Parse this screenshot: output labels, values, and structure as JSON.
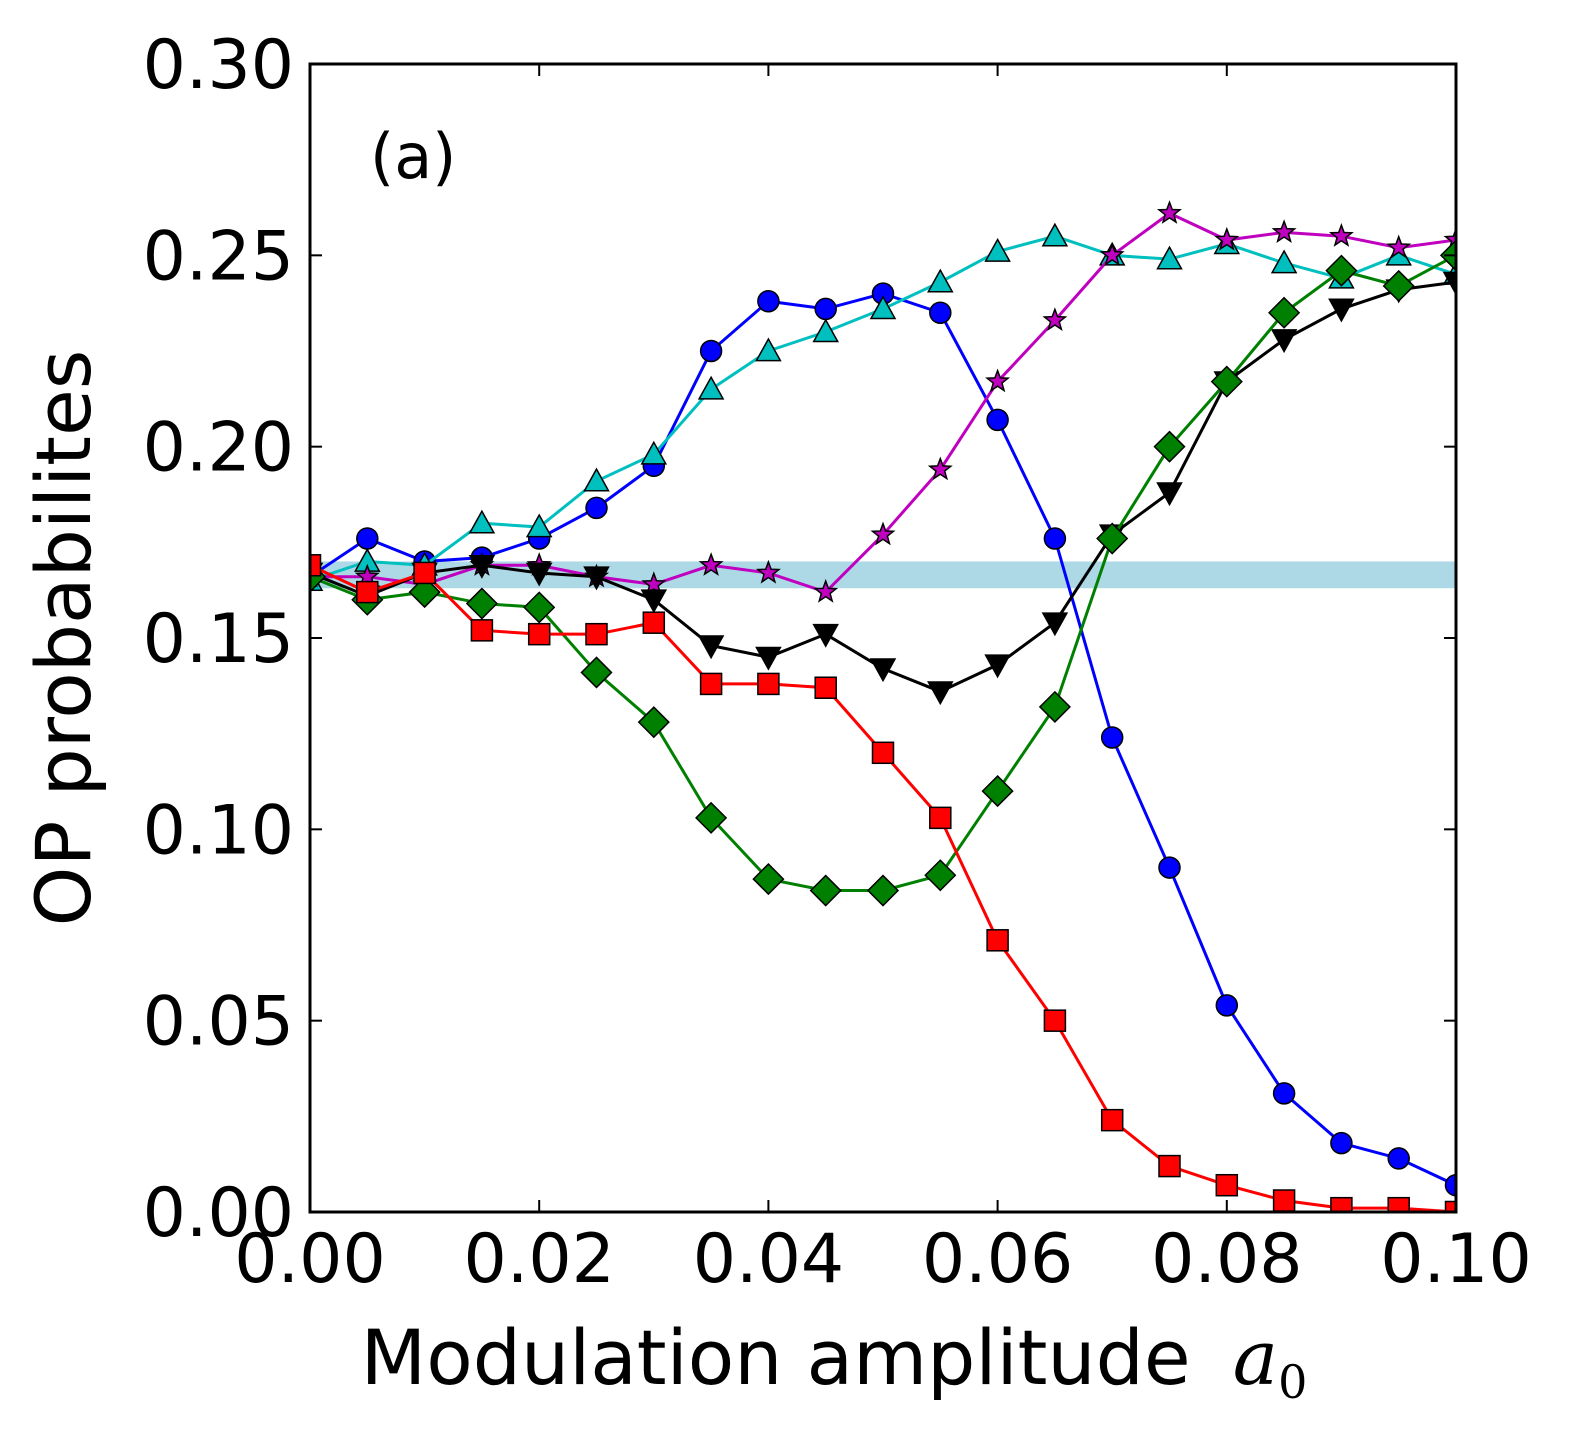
{
  "chart_data": {
    "type": "line",
    "title": "",
    "panel_label": "(a)",
    "xlabel": "Modulation amplitude",
    "xlabel_math": "a",
    "xlabel_sub": "0",
    "ylabel": "OP probabilites",
    "xlim": [
      0.0,
      0.1
    ],
    "ylim": [
      0.0,
      0.3
    ],
    "xticks": [
      0.0,
      0.02,
      0.04,
      0.06,
      0.08,
      0.1
    ],
    "xtick_labels": [
      "0.00",
      "0.02",
      "0.04",
      "0.06",
      "0.08",
      "0.10"
    ],
    "yticks": [
      0.0,
      0.05,
      0.1,
      0.15,
      0.2,
      0.25,
      0.3
    ],
    "ytick_labels": [
      "0.00",
      "0.05",
      "0.10",
      "0.15",
      "0.20",
      "0.25",
      "0.30"
    ],
    "band": {
      "y0": 0.163,
      "y1": 0.17,
      "color": "#add8e6"
    },
    "x": [
      0.0,
      0.005,
      0.01,
      0.015,
      0.02,
      0.025,
      0.03,
      0.035,
      0.04,
      0.045,
      0.05,
      0.055,
      0.06,
      0.065,
      0.07,
      0.075,
      0.08,
      0.085,
      0.09,
      0.095,
      0.1
    ],
    "series": [
      {
        "name": "blue circles",
        "color": "#0000ff",
        "marker": "circle",
        "values": [
          0.166,
          0.176,
          0.17,
          0.171,
          0.176,
          0.184,
          0.195,
          0.225,
          0.238,
          0.236,
          0.24,
          0.235,
          0.207,
          0.176,
          0.124,
          0.09,
          0.054,
          0.031,
          0.018,
          0.014,
          0.007
        ]
      },
      {
        "name": "cyan triangles up",
        "color": "#00bfbf",
        "marker": "triangle-up",
        "values": [
          0.165,
          0.17,
          0.169,
          0.18,
          0.179,
          0.191,
          0.198,
          0.215,
          0.225,
          0.23,
          0.236,
          0.243,
          0.251,
          0.255,
          0.25,
          0.249,
          0.253,
          0.248,
          0.244,
          0.25,
          0.245
        ]
      },
      {
        "name": "magenta stars",
        "color": "#bf00bf",
        "marker": "star",
        "values": [
          0.166,
          0.166,
          0.164,
          0.169,
          0.169,
          0.166,
          0.164,
          0.169,
          0.167,
          0.162,
          0.177,
          0.194,
          0.217,
          0.233,
          0.25,
          0.261,
          0.254,
          0.256,
          0.255,
          0.252,
          0.254
        ]
      },
      {
        "name": "black triangles down",
        "color": "#000000",
        "marker": "triangle-down",
        "values": [
          0.167,
          0.161,
          0.167,
          0.169,
          0.167,
          0.166,
          0.16,
          0.148,
          0.145,
          0.151,
          0.142,
          0.136,
          0.143,
          0.154,
          0.177,
          0.188,
          0.217,
          0.228,
          0.236,
          0.241,
          0.243
        ]
      },
      {
        "name": "green diamonds",
        "color": "#008000",
        "marker": "diamond",
        "values": [
          0.166,
          0.16,
          0.162,
          0.159,
          0.158,
          0.141,
          0.128,
          0.103,
          0.087,
          0.084,
          0.084,
          0.088,
          0.11,
          0.132,
          0.176,
          0.2,
          0.217,
          0.235,
          0.246,
          0.242,
          0.25
        ]
      },
      {
        "name": "red squares",
        "color": "#ff0000",
        "marker": "square",
        "values": [
          0.169,
          0.162,
          0.167,
          0.152,
          0.151,
          0.151,
          0.154,
          0.138,
          0.138,
          0.137,
          0.12,
          0.103,
          0.071,
          0.05,
          0.024,
          0.012,
          0.007,
          0.003,
          0.001,
          0.001,
          0.0
        ]
      }
    ]
  }
}
